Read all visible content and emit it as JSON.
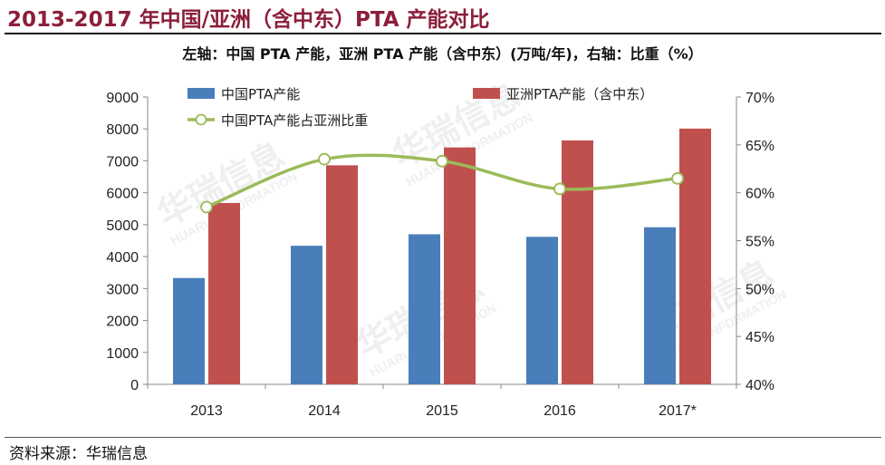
{
  "header": {
    "title": "2013-2017 年中国/亚洲（含中东）PTA 产能对比",
    "axis_note": "左轴：中国 PTA 产能，亚洲 PTA 产能（含中东）(万吨/年)，右轴：比重（%）"
  },
  "footer": {
    "source": "资料来源：华瑞信息"
  },
  "watermark": {
    "text": "华瑞信息",
    "sub": "HUARUI INFORMATION"
  },
  "colors": {
    "china": "#4a7ebb",
    "asia": "#c0504d",
    "ratio": "#9bbb59",
    "axis": "#888888"
  },
  "chart_data": {
    "type": "bar",
    "categories": [
      "2013",
      "2014",
      "2015",
      "2016",
      "2017*"
    ],
    "series": [
      {
        "name": "中国PTA产能",
        "axis": "left",
        "values": [
          3330,
          4340,
          4700,
          4620,
          4920
        ]
      },
      {
        "name": "亚洲PTA产能（含中东）",
        "axis": "left",
        "values": [
          5680,
          6860,
          7420,
          7640,
          8010
        ]
      },
      {
        "name": "中国PTA产能占亚洲比重",
        "axis": "right",
        "type": "line",
        "values": [
          58.5,
          63.5,
          63.3,
          60.4,
          61.5
        ]
      }
    ],
    "ylim_left": [
      0,
      9000
    ],
    "yticks_left": [
      "0",
      "1000",
      "2000",
      "3000",
      "4000",
      "5000",
      "6000",
      "7000",
      "8000",
      "9000"
    ],
    "ylim_right": [
      40,
      70
    ],
    "yticks_right": [
      "40%",
      "45%",
      "50%",
      "55%",
      "60%",
      "65%",
      "70%"
    ],
    "grid": false,
    "legend": "top"
  }
}
